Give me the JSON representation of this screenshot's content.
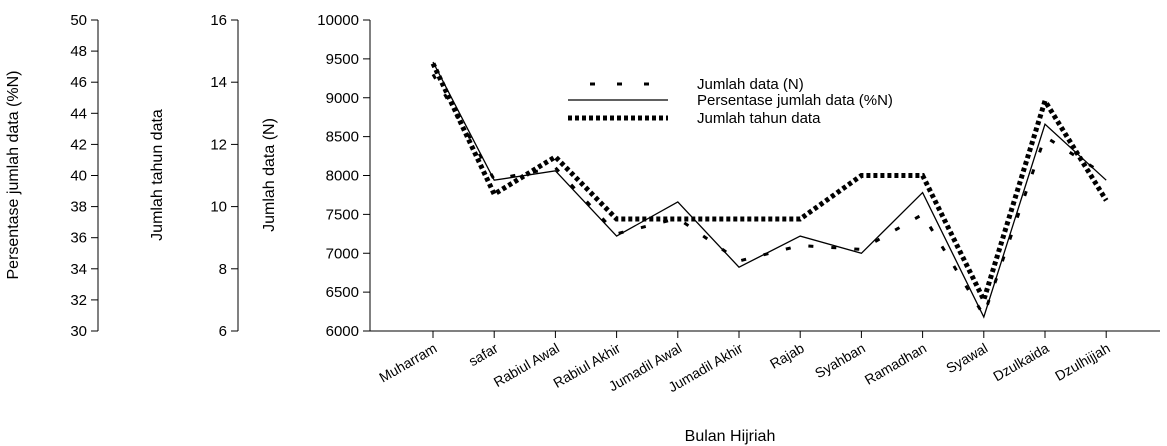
{
  "chart_data": {
    "type": "line",
    "xlabel": "Bulan Hijriah",
    "categories": [
      "Muharram",
      "safar",
      "Rabiul  Awal",
      "Rabiul Akhir",
      "Jumadil Awal",
      "Jumadil Akhir",
      "Rajab",
      "Syahban",
      "Ramadhan",
      "Syawal",
      "Dzulkaida",
      "Dzulhijjah"
    ],
    "axes": [
      {
        "id": "pct",
        "label": "Persentase jumlah data (%N)",
        "ylim": [
          30,
          50
        ],
        "ticks": [
          30,
          32,
          34,
          36,
          38,
          40,
          42,
          44,
          46,
          48,
          50
        ]
      },
      {
        "id": "years",
        "label": "Jumlah tahun data",
        "ylim": [
          6,
          16
        ],
        "ticks": [
          6,
          8,
          10,
          12,
          14,
          16
        ]
      },
      {
        "id": "n",
        "label": "Jumlah data (N)",
        "ylim": [
          6000,
          10000
        ],
        "ticks": [
          6000,
          6500,
          7000,
          7500,
          8000,
          8500,
          9000,
          9500,
          10000
        ]
      }
    ],
    "series": [
      {
        "name": "Jumlah data (N)",
        "axis": "n",
        "style": "sparse-dash",
        "values": [
          9300,
          7950,
          8100,
          7250,
          7450,
          6900,
          7100,
          7050,
          7500,
          6200,
          8500,
          8000
        ]
      },
      {
        "name": "Persentase jumlah data (%N)",
        "axis": "pct",
        "style": "solid",
        "values": [
          47.3,
          39.7,
          40.3,
          36.1,
          38.3,
          34.1,
          36.1,
          35.0,
          38.9,
          30.9,
          43.3,
          39.7
        ]
      },
      {
        "name": "Jumlah tahun data",
        "axis": "years",
        "style": "heavy-dash",
        "values": [
          14.6,
          10.4,
          11.6,
          9.6,
          9.6,
          9.6,
          9.6,
          11.0,
          11.0,
          7.0,
          13.4,
          10.2
        ]
      }
    ],
    "grid": false,
    "legend": "top-center"
  }
}
